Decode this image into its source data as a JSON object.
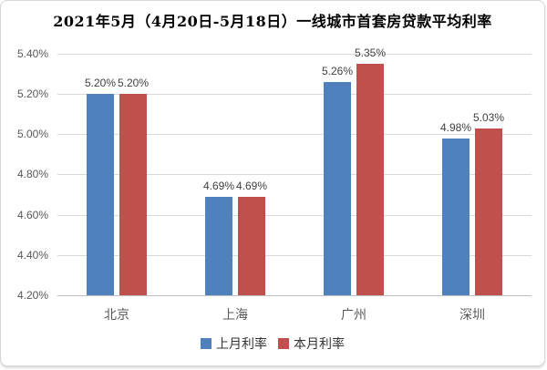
{
  "card": {
    "background": "#ffffff",
    "border_color": "#d6d6d6"
  },
  "chart_data": {
    "type": "bar",
    "title": "2021年5月（4月20日-5月18日）一线城市首套房贷款平均利率",
    "categories": [
      "北京",
      "上海",
      "广州",
      "深圳"
    ],
    "series": [
      {
        "name": "上月利率",
        "color": "#4F81BD",
        "values": [
          5.2,
          4.69,
          5.26,
          4.98
        ],
        "labels": [
          "5.20%",
          "4.69%",
          "5.26%",
          "4.98%"
        ]
      },
      {
        "name": "本月利率",
        "color": "#C0504D",
        "values": [
          5.2,
          4.69,
          5.35,
          5.03
        ],
        "labels": [
          "5.20%",
          "4.69%",
          "5.35%",
          "5.03%"
        ]
      }
    ],
    "xlabel": "",
    "ylabel": "",
    "y_axis": {
      "min": 4.2,
      "max": 5.4,
      "step": 0.2,
      "tick_labels": [
        "4.20%",
        "4.40%",
        "4.60%",
        "4.80%",
        "5.00%",
        "5.20%",
        "5.40%"
      ]
    },
    "grid": true,
    "legend_position": "bottom",
    "colors": {
      "gridline": "#d9d9d9",
      "baseline": "#c0c0c0",
      "tick_text": "#595959",
      "category_text": "#595959",
      "data_label_text": "#404040",
      "legend_text": "#333333",
      "title_text": "#000000"
    }
  }
}
